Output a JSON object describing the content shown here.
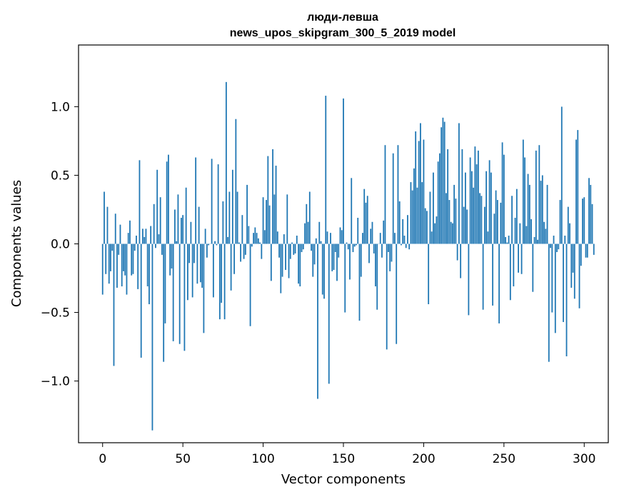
{
  "chart_data": {
    "type": "bar",
    "title": "люди-левша",
    "subtitle": "news_upos_skipgram_300_5_2019 model",
    "xlabel": "Vector components",
    "ylabel": "Components values",
    "xlim": [
      -15,
      315
    ],
    "ylim": [
      -1.45,
      1.45
    ],
    "xticks": [
      0,
      50,
      100,
      150,
      200,
      250,
      300
    ],
    "yticks": [
      1.0,
      0.5,
      0.0,
      -0.5,
      -1.0
    ],
    "xtick_labels": [
      "0",
      "50",
      "100",
      "150",
      "200",
      "250",
      "300"
    ],
    "ytick_labels": [
      "1.0",
      "0.5",
      "0.0",
      "−0.5",
      "−1.0"
    ],
    "bar_color": "#1f77b4",
    "values": [
      -0.37,
      0.38,
      -0.22,
      0.27,
      -0.29,
      -0.2,
      -0.05,
      -0.89,
      0.22,
      -0.32,
      -0.08,
      0.14,
      -0.31,
      -0.2,
      -0.23,
      -0.37,
      0.08,
      0.17,
      -0.23,
      -0.22,
      -0.05,
      0.06,
      -0.33,
      0.61,
      -0.83,
      0.11,
      0.05,
      0.11,
      -0.31,
      -0.44,
      0.13,
      -1.36,
      0.29,
      -0.03,
      0.54,
      0.07,
      0.34,
      -0.08,
      -0.86,
      -0.58,
      0.6,
      0.65,
      -0.23,
      -0.18,
      -0.71,
      0.25,
      0.02,
      0.36,
      -0.73,
      0.19,
      0.21,
      -0.78,
      0.41,
      -0.41,
      -0.14,
      0.16,
      -0.39,
      -0.14,
      0.63,
      -0.29,
      0.27,
      -0.28,
      -0.32,
      -0.65,
      0.11,
      -0.1,
      -0.01,
      0.0,
      0.62,
      -0.39,
      0.02,
      -0.01,
      0.58,
      -0.55,
      -0.43,
      0.31,
      -0.55,
      1.18,
      0.05,
      0.38,
      -0.34,
      0.54,
      -0.22,
      0.91,
      0.38,
      0.01,
      -0.13,
      0.21,
      -0.11,
      -0.08,
      0.43,
      0.13,
      -0.6,
      -0.02,
      0.08,
      0.12,
      0.08,
      0.04,
      0.01,
      -0.11,
      0.34,
      0.1,
      0.32,
      0.64,
      0.28,
      -0.27,
      0.69,
      0.36,
      0.57,
      0.09,
      -0.1,
      -0.36,
      -0.24,
      0.07,
      -0.19,
      0.36,
      -0.25,
      -0.11,
      0.01,
      -0.08,
      -0.07,
      0.06,
      -0.29,
      -0.31,
      -0.06,
      -0.04,
      0.15,
      0.29,
      0.16,
      0.38,
      -0.05,
      -0.24,
      -0.15,
      0.04,
      -1.13,
      0.16,
      0.02,
      -0.37,
      -0.4,
      1.08,
      0.09,
      -1.02,
      0.08,
      -0.2,
      -0.19,
      -0.06,
      -0.27,
      -0.1,
      0.12,
      0.1,
      1.06,
      -0.5,
      0.01,
      -0.04,
      -0.26,
      0.48,
      -0.06,
      -0.02,
      -0.01,
      0.19,
      -0.56,
      -0.24,
      0.08,
      0.4,
      0.3,
      0.35,
      -0.14,
      0.11,
      0.16,
      -0.07,
      -0.31,
      -0.48,
      0.0,
      0.08,
      -0.1,
      0.17,
      0.72,
      -0.77,
      -0.06,
      -0.2,
      -0.13,
      0.66,
      0.08,
      -0.73,
      0.72,
      0.31,
      -0.01,
      0.18,
      0.06,
      -0.03,
      0.21,
      -0.04,
      0.45,
      0.39,
      0.55,
      0.82,
      0.41,
      0.75,
      0.88,
      0.45,
      0.76,
      0.26,
      0.24,
      -0.44,
      0.38,
      0.09,
      0.52,
      0.15,
      0.2,
      0.6,
      0.66,
      0.85,
      0.92,
      0.89,
      0.37,
      0.69,
      0.32,
      0.16,
      0.15,
      0.43,
      0.33,
      -0.12,
      0.88,
      -0.25,
      0.69,
      0.27,
      0.52,
      0.25,
      -0.52,
      0.63,
      0.53,
      0.41,
      0.71,
      0.58,
      0.68,
      0.37,
      0.35,
      -0.48,
      0.27,
      0.53,
      0.09,
      0.61,
      0.52,
      -0.45,
      0.22,
      0.39,
      0.32,
      -0.58,
      0.3,
      0.74,
      0.65,
      0.05,
      0.01,
      0.06,
      -0.41,
      0.35,
      -0.31,
      0.19,
      0.4,
      -0.21,
      0.15,
      -0.22,
      0.76,
      0.63,
      0.13,
      0.51,
      0.43,
      0.18,
      -0.35,
      0.05,
      0.68,
      0.03,
      0.72,
      0.46,
      0.5,
      0.16,
      0.11,
      0.43,
      -0.86,
      -0.03,
      -0.5,
      0.06,
      -0.65,
      -0.06,
      -0.04,
      0.32,
      1.0,
      -0.57,
      0.06,
      -0.82,
      0.27,
      0.15,
      -0.32,
      -0.21,
      -0.4,
      0.76,
      0.83,
      -0.47,
      -0.16,
      0.33,
      0.34,
      -0.1,
      -0.1,
      0.48,
      0.43,
      0.29,
      -0.08
    ]
  }
}
